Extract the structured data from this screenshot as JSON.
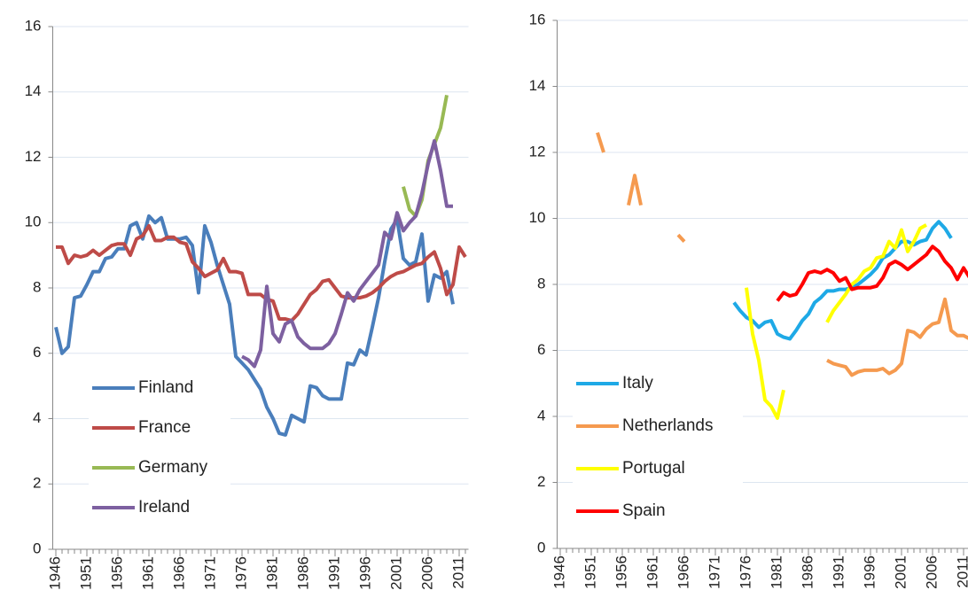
{
  "chart_data": [
    {
      "type": "line",
      "legend": "lower left",
      "grid": true,
      "xlim": [
        1945.5,
        2012.5
      ],
      "ylim": [
        0,
        16
      ],
      "yticks": [
        0,
        2,
        4,
        6,
        8,
        10,
        12,
        14,
        16
      ],
      "xticks": [
        1946,
        1951,
        1956,
        1961,
        1966,
        1971,
        1976,
        1981,
        1986,
        1991,
        1996,
        2001,
        2006,
        2011
      ],
      "x": [
        1946,
        1947,
        1948,
        1949,
        1950,
        1951,
        1952,
        1953,
        1954,
        1955,
        1956,
        1957,
        1958,
        1959,
        1960,
        1961,
        1962,
        1963,
        1964,
        1965,
        1966,
        1967,
        1968,
        1969,
        1970,
        1971,
        1972,
        1973,
        1974,
        1975,
        1976,
        1977,
        1978,
        1979,
        1980,
        1981,
        1982,
        1983,
        1984,
        1985,
        1986,
        1987,
        1988,
        1989,
        1990,
        1991,
        1992,
        1993,
        1994,
        1995,
        1996,
        1997,
        1998,
        1999,
        2000,
        2001,
        2002,
        2003,
        2004,
        2005,
        2006,
        2007,
        2008,
        2009,
        2010,
        2011,
        2012
      ],
      "series": [
        {
          "name": "Finland",
          "color": "#4a7ebb",
          "values": [
            6.8,
            6.0,
            6.2,
            7.7,
            7.75,
            8.1,
            8.5,
            8.5,
            8.9,
            8.95,
            9.2,
            9.2,
            9.9,
            10.0,
            9.5,
            10.2,
            10.0,
            10.15,
            9.5,
            9.5,
            9.5,
            9.55,
            9.3,
            7.85,
            9.9,
            9.4,
            8.7,
            8.1,
            7.5,
            5.9,
            5.7,
            5.5,
            5.2,
            4.9,
            4.35,
            4.0,
            3.55,
            3.5,
            4.1,
            4.0,
            3.9,
            5.0,
            4.95,
            4.7,
            4.6,
            4.6,
            4.6,
            5.7,
            5.65,
            6.1,
            5.95,
            6.8,
            7.7,
            8.8,
            9.8,
            10.1,
            8.9,
            8.7,
            8.8,
            9.65,
            7.6,
            8.4,
            8.3,
            8.5,
            7.5,
            null,
            null
          ]
        },
        {
          "name": "France",
          "color": "#be4b48",
          "values": [
            9.25,
            9.25,
            8.75,
            9.0,
            8.95,
            9.0,
            9.15,
            9.0,
            9.15,
            9.3,
            9.35,
            9.35,
            9.0,
            9.5,
            9.6,
            9.9,
            9.45,
            9.45,
            9.55,
            9.55,
            9.4,
            9.35,
            8.8,
            8.6,
            8.35,
            8.45,
            8.55,
            8.9,
            8.5,
            8.5,
            8.45,
            7.8,
            7.8,
            7.8,
            7.65,
            7.6,
            7.05,
            7.05,
            7.0,
            7.2,
            7.5,
            7.8,
            7.95,
            8.2,
            8.25,
            8.0,
            7.75,
            7.7,
            7.7,
            7.7,
            7.75,
            7.85,
            8.0,
            8.2,
            8.35,
            8.45,
            8.5,
            8.6,
            8.7,
            8.75,
            8.95,
            9.1,
            8.6,
            7.8,
            8.1,
            9.25,
            8.95
          ]
        },
        {
          "name": "Germany",
          "color": "#98b954",
          "values": [
            null,
            null,
            null,
            null,
            null,
            null,
            null,
            null,
            null,
            null,
            null,
            null,
            null,
            null,
            null,
            null,
            null,
            null,
            null,
            null,
            null,
            null,
            null,
            null,
            null,
            null,
            null,
            null,
            null,
            null,
            null,
            null,
            null,
            null,
            null,
            null,
            null,
            null,
            null,
            null,
            null,
            null,
            null,
            null,
            null,
            null,
            null,
            null,
            null,
            null,
            null,
            null,
            null,
            null,
            null,
            null,
            11.1,
            10.4,
            10.2,
            10.7,
            11.9,
            12.4,
            12.9,
            13.9,
            null,
            null,
            null
          ]
        },
        {
          "name": "Ireland",
          "color": "#7d60a0",
          "values": [
            null,
            null,
            null,
            null,
            null,
            null,
            null,
            null,
            null,
            null,
            null,
            null,
            null,
            null,
            null,
            null,
            null,
            null,
            null,
            null,
            null,
            null,
            null,
            null,
            null,
            null,
            null,
            null,
            null,
            null,
            5.9,
            5.8,
            5.6,
            6.1,
            8.05,
            6.6,
            6.35,
            6.9,
            7.0,
            6.5,
            6.3,
            6.15,
            6.15,
            6.15,
            6.3,
            6.6,
            7.2,
            7.85,
            7.6,
            7.95,
            8.2,
            8.45,
            8.7,
            9.7,
            9.5,
            10.3,
            9.75,
            10.0,
            10.2,
            10.9,
            11.8,
            12.5,
            11.6,
            10.5,
            10.5,
            null,
            null
          ]
        }
      ]
    },
    {
      "type": "line",
      "legend": "lower left",
      "grid": true,
      "xlim": [
        1945.5,
        2012.5
      ],
      "ylim": [
        0,
        16
      ],
      "yticks": [
        0,
        2,
        4,
        6,
        8,
        10,
        12,
        14,
        16
      ],
      "xticks": [
        1946,
        1951,
        1956,
        1961,
        1966,
        1971,
        1976,
        1981,
        1986,
        1991,
        1996,
        2001,
        2006,
        2011
      ],
      "x": [
        1946,
        1947,
        1948,
        1949,
        1950,
        1951,
        1952,
        1953,
        1954,
        1955,
        1956,
        1957,
        1958,
        1959,
        1960,
        1961,
        1962,
        1963,
        1964,
        1965,
        1966,
        1967,
        1968,
        1969,
        1970,
        1971,
        1972,
        1973,
        1974,
        1975,
        1976,
        1977,
        1978,
        1979,
        1980,
        1981,
        1982,
        1983,
        1984,
        1985,
        1986,
        1987,
        1988,
        1989,
        1990,
        1991,
        1992,
        1993,
        1994,
        1995,
        1996,
        1997,
        1998,
        1999,
        2000,
        2001,
        2002,
        2003,
        2004,
        2005,
        2006,
        2007,
        2008,
        2009,
        2010,
        2011,
        2012
      ],
      "series": [
        {
          "name": "Italy",
          "color": "#1ea9e6",
          "values": [
            null,
            null,
            null,
            null,
            null,
            null,
            null,
            null,
            null,
            null,
            null,
            null,
            null,
            null,
            null,
            null,
            null,
            null,
            null,
            null,
            null,
            null,
            null,
            null,
            null,
            null,
            null,
            null,
            7.45,
            7.2,
            7.0,
            6.9,
            6.7,
            6.85,
            6.9,
            6.5,
            6.4,
            6.35,
            6.6,
            6.9,
            7.1,
            7.45,
            7.6,
            7.8,
            7.8,
            7.85,
            7.85,
            7.9,
            8.0,
            8.15,
            8.3,
            8.5,
            8.8,
            8.9,
            9.1,
            9.3,
            9.3,
            9.2,
            9.3,
            9.35,
            9.7,
            9.9,
            9.7,
            9.4,
            null,
            null,
            null
          ]
        },
        {
          "name": "Netherlands",
          "color": "#f59a4f",
          "values": [
            null,
            null,
            null,
            null,
            null,
            null,
            12.6,
            12.0,
            null,
            null,
            null,
            10.4,
            11.3,
            10.4,
            null,
            null,
            null,
            null,
            null,
            9.5,
            9.3,
            null,
            null,
            null,
            null,
            null,
            null,
            null,
            null,
            null,
            null,
            null,
            null,
            null,
            null,
            null,
            null,
            null,
            null,
            null,
            null,
            null,
            null,
            5.7,
            5.6,
            5.55,
            5.5,
            5.25,
            5.35,
            5.4,
            5.4,
            5.4,
            5.45,
            5.3,
            5.4,
            5.6,
            6.6,
            6.55,
            6.4,
            6.65,
            6.8,
            6.85,
            7.55,
            6.6,
            6.45,
            6.45,
            6.35
          ]
        },
        {
          "name": "Portugal",
          "color": "#ffff00",
          "values": [
            null,
            null,
            null,
            null,
            null,
            null,
            null,
            null,
            null,
            null,
            null,
            null,
            null,
            null,
            null,
            null,
            null,
            null,
            null,
            null,
            null,
            null,
            null,
            null,
            null,
            null,
            null,
            null,
            null,
            null,
            7.9,
            6.5,
            5.7,
            4.5,
            4.3,
            3.95,
            4.8,
            null,
            null,
            null,
            null,
            null,
            null,
            6.85,
            7.2,
            7.45,
            7.7,
            8.0,
            8.15,
            8.4,
            8.5,
            8.8,
            8.85,
            9.3,
            9.1,
            9.65,
            9.0,
            9.3,
            9.7,
            9.8,
            null,
            null,
            null,
            null,
            null,
            null,
            null
          ]
        },
        {
          "name": "Spain",
          "color": "#ff0000",
          "values": [
            null,
            null,
            null,
            null,
            null,
            null,
            null,
            null,
            null,
            null,
            null,
            null,
            null,
            null,
            null,
            null,
            null,
            null,
            null,
            null,
            null,
            null,
            null,
            null,
            null,
            null,
            null,
            null,
            null,
            null,
            null,
            null,
            null,
            null,
            null,
            7.5,
            7.75,
            7.65,
            7.7,
            8.0,
            8.35,
            8.4,
            8.35,
            8.45,
            8.35,
            8.1,
            8.2,
            7.85,
            7.9,
            7.9,
            7.9,
            7.95,
            8.2,
            8.6,
            8.7,
            8.6,
            8.45,
            8.6,
            8.75,
            8.9,
            9.15,
            9.0,
            8.7,
            8.5,
            8.15,
            8.5,
            8.2
          ]
        }
      ]
    }
  ]
}
